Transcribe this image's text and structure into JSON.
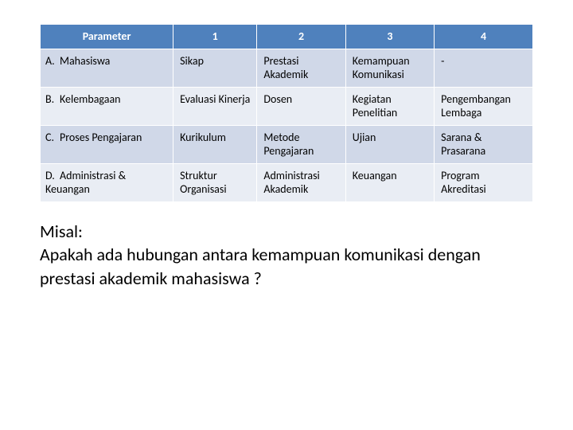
{
  "table": {
    "header_bg": "#4f81bd",
    "header_fg": "#ffffff",
    "row_odd_bg": "#d0d8e8",
    "row_even_bg": "#e9edf4",
    "border_color": "#ffffff",
    "columns": [
      "Parameter",
      "1",
      "2",
      "3",
      "4"
    ],
    "rows": [
      {
        "letter": "A.",
        "label": "Mahasiswa",
        "cells": [
          "Sikap",
          "Prestasi Akademik",
          "Kemampuan Komunikasi",
          "-"
        ]
      },
      {
        "letter": "B.",
        "label": "Kelembagaan",
        "cells": [
          "Evaluasi Kinerja",
          "Dosen",
          "Kegiatan Penelitian",
          "Pengembangan Lembaga"
        ]
      },
      {
        "letter": "C.",
        "label": "Proses Pengajaran",
        "cells": [
          "Kurikulum",
          "Metode Pengajaran",
          "Ujian",
          "Sarana & Prasarana"
        ]
      },
      {
        "letter": "D.",
        "label": "Administrasi & Keuangan",
        "cells": [
          "Struktur Organisasi",
          "Administrasi Akademik",
          "Keuangan",
          "Program Akreditasi"
        ]
      }
    ]
  },
  "example": {
    "heading": "Misal:",
    "text": "Apakah ada hubungan antara kemampuan komunikasi dengan prestasi akademik mahasiswa ?"
  }
}
